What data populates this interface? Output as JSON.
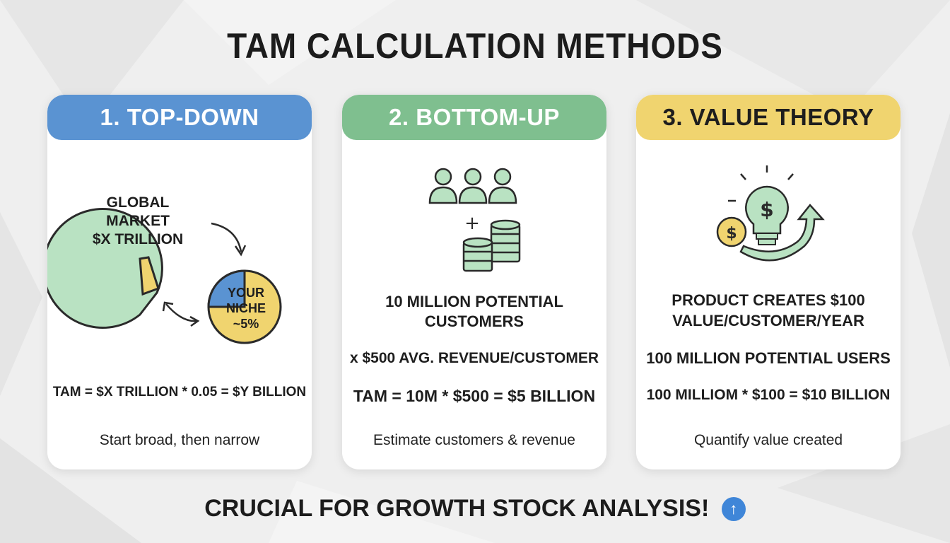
{
  "title": "TAM CALCULATION METHODS",
  "colors": {
    "blue": "#5a93d2",
    "green": "#7fbf8f",
    "yellow": "#f0d46f",
    "light_green": "#b9e2c2"
  },
  "methods": [
    {
      "header": "1. TOP-DOWN",
      "illustration": {
        "big_circle": [
          "GLOBAL",
          "MARKET",
          "$X TRILLION"
        ],
        "small_circle": [
          "YOUR",
          "NICHE",
          "~5%"
        ]
      },
      "formula": "TAM = $X TRILLION * 0.05 = $Y BILLION",
      "description": "Start broad, then narrow"
    },
    {
      "header": "2. BOTTOM-UP",
      "icons": [
        "people-icon",
        "plus-icon",
        "coins-icon"
      ],
      "customers": [
        "10 MILLION POTENTIAL",
        "CUSTOMERS"
      ],
      "revenue": "x $500 AVG. REVENUE/CUSTOMER",
      "formula": "TAM = 10M * $500 = $5 BILLION",
      "description": "Estimate customers & revenue"
    },
    {
      "header": "3. VALUE THEORY",
      "icons": [
        "lightbulb-dollar-icon",
        "coin-icon",
        "growth-arrow-icon"
      ],
      "value": [
        "PRODUCT CREATES $100",
        "VALUE/CUSTOMER/YEAR"
      ],
      "users": "100 MILLION POTENTIAL USERS",
      "formula": "100 MILLIOM * $100 = $10 BILLION",
      "description": "Quantify value created"
    }
  ],
  "footer": {
    "text": "CRUCIAL FOR GROWTH STOCK ANALYSIS!",
    "icon": "arrow-up-circle-icon"
  }
}
